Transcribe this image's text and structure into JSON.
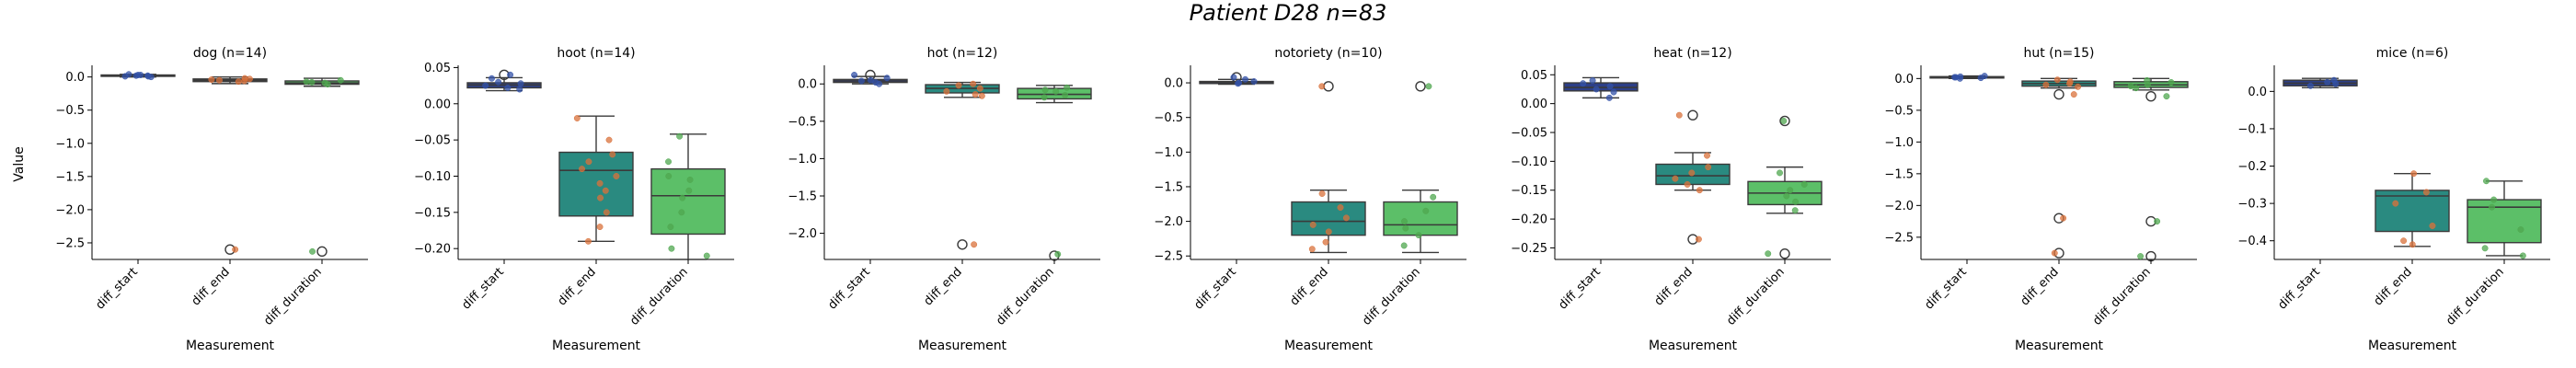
{
  "suptitle": "Patient D28 n=83",
  "chart_data": {
    "type": "box",
    "categories": [
      "diff_start",
      "diff_end",
      "diff_duration"
    ],
    "colors": [
      "#2d3f87",
      "#2a8a80",
      "#5cbf68"
    ],
    "point_colors": [
      "#3352a8",
      "#d9713b",
      "#4fa74f"
    ],
    "xlabel": "Measurement",
    "ylabel": "Value",
    "panels": [
      {
        "title": "dog (n=14)",
        "ylim": [
          -2.75,
          0.12
        ],
        "yticks": [
          0.0,
          -0.5,
          -1.0,
          -1.5,
          -2.0,
          -2.5
        ],
        "yticklabels": [
          "0.0",
          "−0.5",
          "−1.0",
          "−1.5",
          "−2.0",
          "−2.5"
        ],
        "boxes": [
          {
            "q1": 0.01,
            "median": 0.02,
            "q3": 0.03,
            "whisker_low": 0.0,
            "whisker_high": 0.04,
            "outliers": []
          },
          {
            "q1": -0.07,
            "median": -0.05,
            "q3": -0.03,
            "whisker_low": -0.1,
            "whisker_high": 0.0,
            "outliers": [
              -2.6
            ]
          },
          {
            "q1": -0.11,
            "median": -0.09,
            "q3": -0.06,
            "whisker_low": -0.14,
            "whisker_high": -0.02,
            "outliers": [
              -2.63
            ]
          }
        ],
        "points": [
          [
            0.01,
            0.02,
            0.03,
            0.02,
            0.04,
            0.0,
            0.01,
            0.03
          ],
          [
            -0.05,
            -0.03,
            -0.07,
            -0.02,
            -0.06,
            -0.04,
            -2.6
          ],
          [
            -0.09,
            -0.07,
            -0.11,
            -0.05,
            -0.08,
            -2.63
          ]
        ]
      },
      {
        "title": "hoot (n=14)",
        "ylim": [
          -0.215,
          0.048
        ],
        "yticks": [
          0.05,
          0.0,
          -0.05,
          -0.1,
          -0.15,
          -0.2
        ],
        "yticklabels": [
          "0.05",
          "0.00",
          "−0.05",
          "−0.10",
          "−0.15",
          "−0.20"
        ],
        "boxes": [
          {
            "q1": 0.022,
            "median": 0.026,
            "q3": 0.029,
            "whisker_low": 0.018,
            "whisker_high": 0.036,
            "outliers": [
              0.04
            ]
          },
          {
            "q1": -0.155,
            "median": -0.092,
            "q3": -0.067,
            "whisker_low": -0.19,
            "whisker_high": -0.017,
            "outliers": []
          },
          {
            "q1": -0.18,
            "median": -0.127,
            "q3": -0.09,
            "whisker_low": -0.215,
            "whisker_high": -0.042,
            "outliers": []
          }
        ],
        "points": [
          [
            0.022,
            0.025,
            0.03,
            0.02,
            0.035,
            0.028,
            0.04
          ],
          [
            -0.02,
            -0.05,
            -0.07,
            -0.08,
            -0.09,
            -0.1,
            -0.11,
            -0.12,
            -0.13,
            -0.15,
            -0.17,
            -0.19
          ],
          [
            -0.045,
            -0.08,
            -0.1,
            -0.105,
            -0.12,
            -0.13,
            -0.15,
            -0.17,
            -0.2,
            -0.21
          ]
        ]
      },
      {
        "title": "hot (n=12)",
        "ylim": [
          -2.35,
          0.2
        ],
        "yticks": [
          0.0,
          -0.5,
          -1.0,
          -1.5,
          -2.0
        ],
        "yticklabels": [
          "0.0",
          "−0.5",
          "−1.0",
          "−1.5",
          "−2.0"
        ],
        "boxes": [
          {
            "q1": 0.02,
            "median": 0.04,
            "q3": 0.06,
            "whisker_low": 0.0,
            "whisker_high": 0.1,
            "outliers": [
              0.12
            ]
          },
          {
            "q1": -0.12,
            "median": -0.06,
            "q3": -0.01,
            "whisker_low": -0.18,
            "whisker_high": 0.02,
            "outliers": [
              -2.15
            ]
          },
          {
            "q1": -0.2,
            "median": -0.14,
            "q3": -0.06,
            "whisker_low": -0.25,
            "whisker_high": -0.02,
            "outliers": [
              -2.3
            ]
          }
        ],
        "points": [
          [
            0.02,
            0.05,
            0.08,
            0.0,
            0.12,
            0.04
          ],
          [
            -0.02,
            -0.06,
            -0.1,
            -0.14,
            0.0,
            -0.16,
            -2.15
          ],
          [
            -0.05,
            -0.1,
            -0.15,
            -0.18,
            -0.08,
            -2.28
          ]
        ]
      },
      {
        "title": "notoriety (n=10)",
        "ylim": [
          -2.55,
          0.2
        ],
        "yticks": [
          0.0,
          -0.5,
          -1.0,
          -1.5,
          -2.0,
          -2.5
        ],
        "yticklabels": [
          "0.0",
          "−0.5",
          "−1.0",
          "−1.5",
          "−2.0",
          "−2.5"
        ],
        "boxes": [
          {
            "q1": -0.01,
            "median": 0.01,
            "q3": 0.02,
            "whisker_low": -0.02,
            "whisker_high": 0.05,
            "outliers": [
              0.08
            ]
          },
          {
            "q1": -2.2,
            "median": -2.0,
            "q3": -1.72,
            "whisker_low": -2.45,
            "whisker_high": -1.55,
            "outliers": [
              -0.05
            ]
          },
          {
            "q1": -2.2,
            "median": -2.05,
            "q3": -1.72,
            "whisker_low": -2.45,
            "whisker_high": -1.55,
            "outliers": [
              -0.05
            ]
          }
        ],
        "points": [
          [
            0.0,
            0.02,
            0.05,
            -0.01,
            0.08
          ],
          [
            -1.6,
            -1.8,
            -1.95,
            -2.05,
            -2.15,
            -2.3,
            -2.4,
            -0.05
          ],
          [
            -1.65,
            -1.85,
            -2.0,
            -2.1,
            -2.2,
            -2.35,
            -0.05
          ]
        ]
      },
      {
        "title": "heat (n=12)",
        "ylim": [
          -0.27,
          0.06
        ],
        "yticks": [
          0.05,
          0.0,
          -0.05,
          -0.1,
          -0.15,
          -0.2,
          -0.25
        ],
        "yticklabels": [
          "0.05",
          "0.00",
          "−0.05",
          "−0.10",
          "−0.15",
          "−0.20",
          "−0.25"
        ],
        "boxes": [
          {
            "q1": 0.022,
            "median": 0.028,
            "q3": 0.036,
            "whisker_low": 0.01,
            "whisker_high": 0.045,
            "outliers": []
          },
          {
            "q1": -0.14,
            "median": -0.125,
            "q3": -0.105,
            "whisker_low": -0.15,
            "whisker_high": -0.085,
            "outliers": [
              -0.02,
              -0.235
            ]
          },
          {
            "q1": -0.175,
            "median": -0.155,
            "q3": -0.135,
            "whisker_low": -0.19,
            "whisker_high": -0.11,
            "outliers": [
              -0.03,
              -0.26
            ]
          }
        ],
        "points": [
          [
            0.01,
            0.025,
            0.03,
            0.04,
            0.035,
            0.02
          ],
          [
            -0.09,
            -0.11,
            -0.12,
            -0.13,
            -0.14,
            -0.15,
            -0.02,
            -0.235
          ],
          [
            -0.12,
            -0.14,
            -0.15,
            -0.16,
            -0.17,
            -0.185,
            -0.03,
            -0.26
          ]
        ]
      },
      {
        "title": "hut (n=15)",
        "ylim": [
          -2.85,
          0.15
        ],
        "yticks": [
          0.0,
          -0.5,
          -1.0,
          -1.5,
          -2.0,
          -2.5
        ],
        "yticklabels": [
          "0.0",
          "−0.5",
          "−1.0",
          "−1.5",
          "−2.0",
          "−2.5"
        ],
        "boxes": [
          {
            "q1": 0.01,
            "median": 0.02,
            "q3": 0.03,
            "whisker_low": 0.0,
            "whisker_high": 0.04,
            "outliers": []
          },
          {
            "q1": -0.12,
            "median": -0.08,
            "q3": -0.04,
            "whisker_low": -0.15,
            "whisker_high": 0.0,
            "outliers": [
              -0.25,
              -2.2,
              -2.75
            ]
          },
          {
            "q1": -0.14,
            "median": -0.1,
            "q3": -0.05,
            "whisker_low": -0.18,
            "whisker_high": 0.0,
            "outliers": [
              -0.28,
              -2.25,
              -2.8
            ]
          }
        ],
        "points": [
          [
            0.0,
            0.01,
            0.02,
            0.03,
            0.04,
            0.02
          ],
          [
            -0.02,
            -0.05,
            -0.08,
            -0.1,
            -0.13,
            -0.25,
            -2.2,
            -2.75
          ],
          [
            -0.03,
            -0.06,
            -0.1,
            -0.12,
            -0.15,
            -0.28,
            -2.25,
            -2.8
          ]
        ]
      },
      {
        "title": "mice (n=6)",
        "ylim": [
          -0.45,
          0.06
        ],
        "yticks": [
          0.0,
          -0.1,
          -0.2,
          -0.3,
          -0.4
        ],
        "yticklabels": [
          "0.0",
          "−0.1",
          "−0.2",
          "−0.3",
          "−0.4"
        ],
        "boxes": [
          {
            "q1": 0.015,
            "median": 0.022,
            "q3": 0.03,
            "whisker_low": 0.01,
            "whisker_high": 0.035,
            "outliers": []
          },
          {
            "q1": -0.375,
            "median": -0.28,
            "q3": -0.265,
            "whisker_low": -0.415,
            "whisker_high": -0.22,
            "outliers": []
          },
          {
            "q1": -0.405,
            "median": -0.31,
            "q3": -0.29,
            "whisker_low": -0.44,
            "whisker_high": -0.24,
            "outliers": []
          }
        ],
        "points": [
          [
            0.02,
            0.025,
            0.03,
            0.015
          ],
          [
            -0.22,
            -0.27,
            -0.3,
            -0.36,
            -0.4,
            -0.41
          ],
          [
            -0.24,
            -0.29,
            -0.31,
            -0.37,
            -0.42,
            -0.44
          ]
        ]
      }
    ]
  }
}
